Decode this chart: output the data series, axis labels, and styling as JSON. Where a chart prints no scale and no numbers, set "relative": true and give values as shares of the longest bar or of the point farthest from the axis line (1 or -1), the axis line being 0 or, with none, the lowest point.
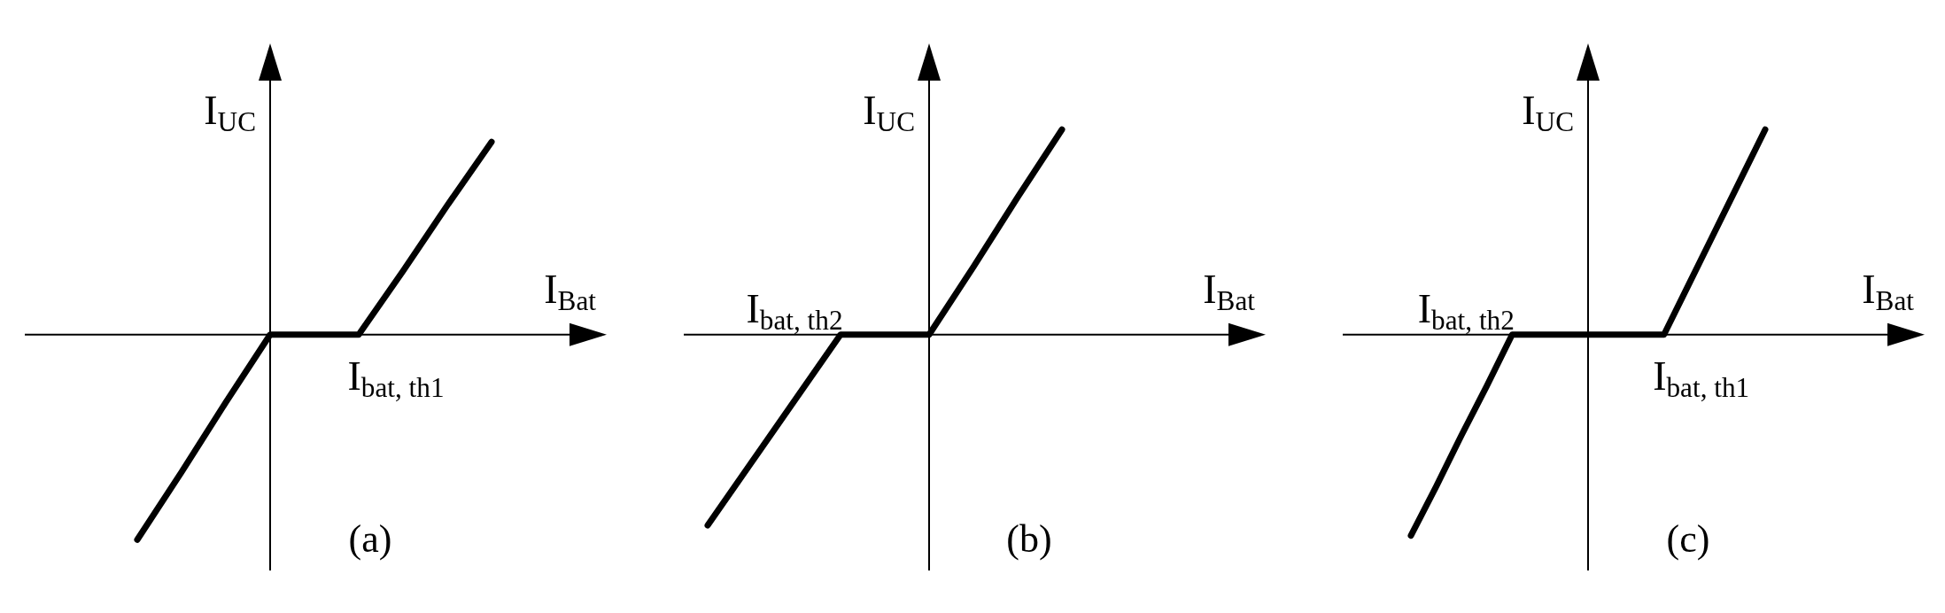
{
  "chart_data": [
    {
      "type": "line",
      "relative": true,
      "xlabel": "I$_{Bat}$",
      "ylabel": "I$_{UC}$",
      "categories": [
        null,
        null,
        null,
        null,
        null,
        null,
        null,
        null,
        null
      ],
      "series": [
        {
          "color": "#000000",
          "values": [
            -1,
            -0.67,
            -0.33,
            0,
            0,
            0,
            0.31,
            0.63,
            0.94
          ]
        }
      ],
      "annotations": [
        "I$_{bat, th1}$",
        "(a)"
      ]
    },
    {
      "type": "line",
      "relative": true,
      "xlabel": "I$_{Bat}$",
      "ylabel": "I$_{UC}$",
      "categories": [
        null,
        null,
        null,
        null,
        null,
        null,
        null,
        null,
        null
      ],
      "series": [
        {
          "color": "#000000",
          "values": [
            -0.93,
            -0.62,
            -0.31,
            0,
            0,
            0,
            0.33,
            0.67,
            1
          ]
        }
      ],
      "annotations": [
        "I$_{bat, th2}$",
        "(b)"
      ]
    },
    {
      "type": "line",
      "relative": true,
      "xlabel": "I$_{Bat}$",
      "ylabel": "I$_{UC}$",
      "categories": [
        null,
        null,
        null,
        null,
        null,
        null,
        null,
        null,
        null,
        null,
        null,
        null,
        null,
        null,
        null
      ],
      "series": [
        {
          "color": "#000000",
          "values": [
            -0.98,
            -0.74,
            -0.49,
            -0.25,
            0,
            0,
            0,
            0,
            0,
            0,
            0,
            0.25,
            0.5,
            0.75,
            1
          ]
        }
      ],
      "annotations": [
        "I$_{bat, th2}$",
        "I$_{bat, th1}$",
        "(c)"
      ]
    }
  ]
}
